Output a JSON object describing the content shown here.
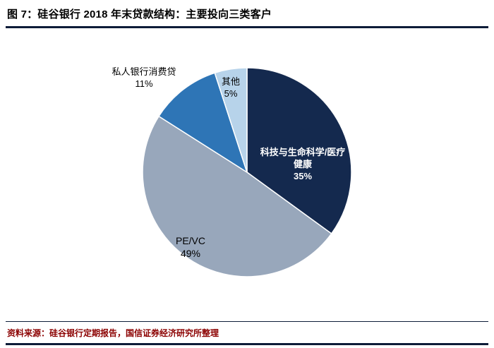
{
  "header": {
    "title": "图 7：硅谷银行 2018 年末贷款结构：主要投向三类客户"
  },
  "chart_data": {
    "type": "pie",
    "title": "硅谷银行 2018 年末贷款结构：主要投向三类客户",
    "unit": "%",
    "direction": "clockwise",
    "start_angle": "12-o'clock",
    "legend": "none",
    "slices": [
      {
        "label": "科技与生命科学/医疗健康",
        "value": 35,
        "pct": "35%",
        "color": "#14294E",
        "text_color": "#FFFFFF"
      },
      {
        "label": "PE/VC",
        "value": 49,
        "pct": "49%",
        "color": "#98A7BB",
        "text_color": "#000000"
      },
      {
        "label": "私人银行消费贷",
        "value": 11,
        "pct": "11%",
        "color": "#2E75B6",
        "text_color": "#000000"
      },
      {
        "label": "其他",
        "value": 5,
        "pct": "5%",
        "color": "#B7D3EA",
        "text_color": "#000000"
      }
    ]
  },
  "footer": {
    "source": "资料来源：硅谷银行定期报告，国信证券经济研究所整理"
  },
  "colors": {
    "title_text": "#000000",
    "source_text": "#8B0000",
    "rule": "#0D1C38",
    "slice_stroke": "#FFFFFF"
  }
}
